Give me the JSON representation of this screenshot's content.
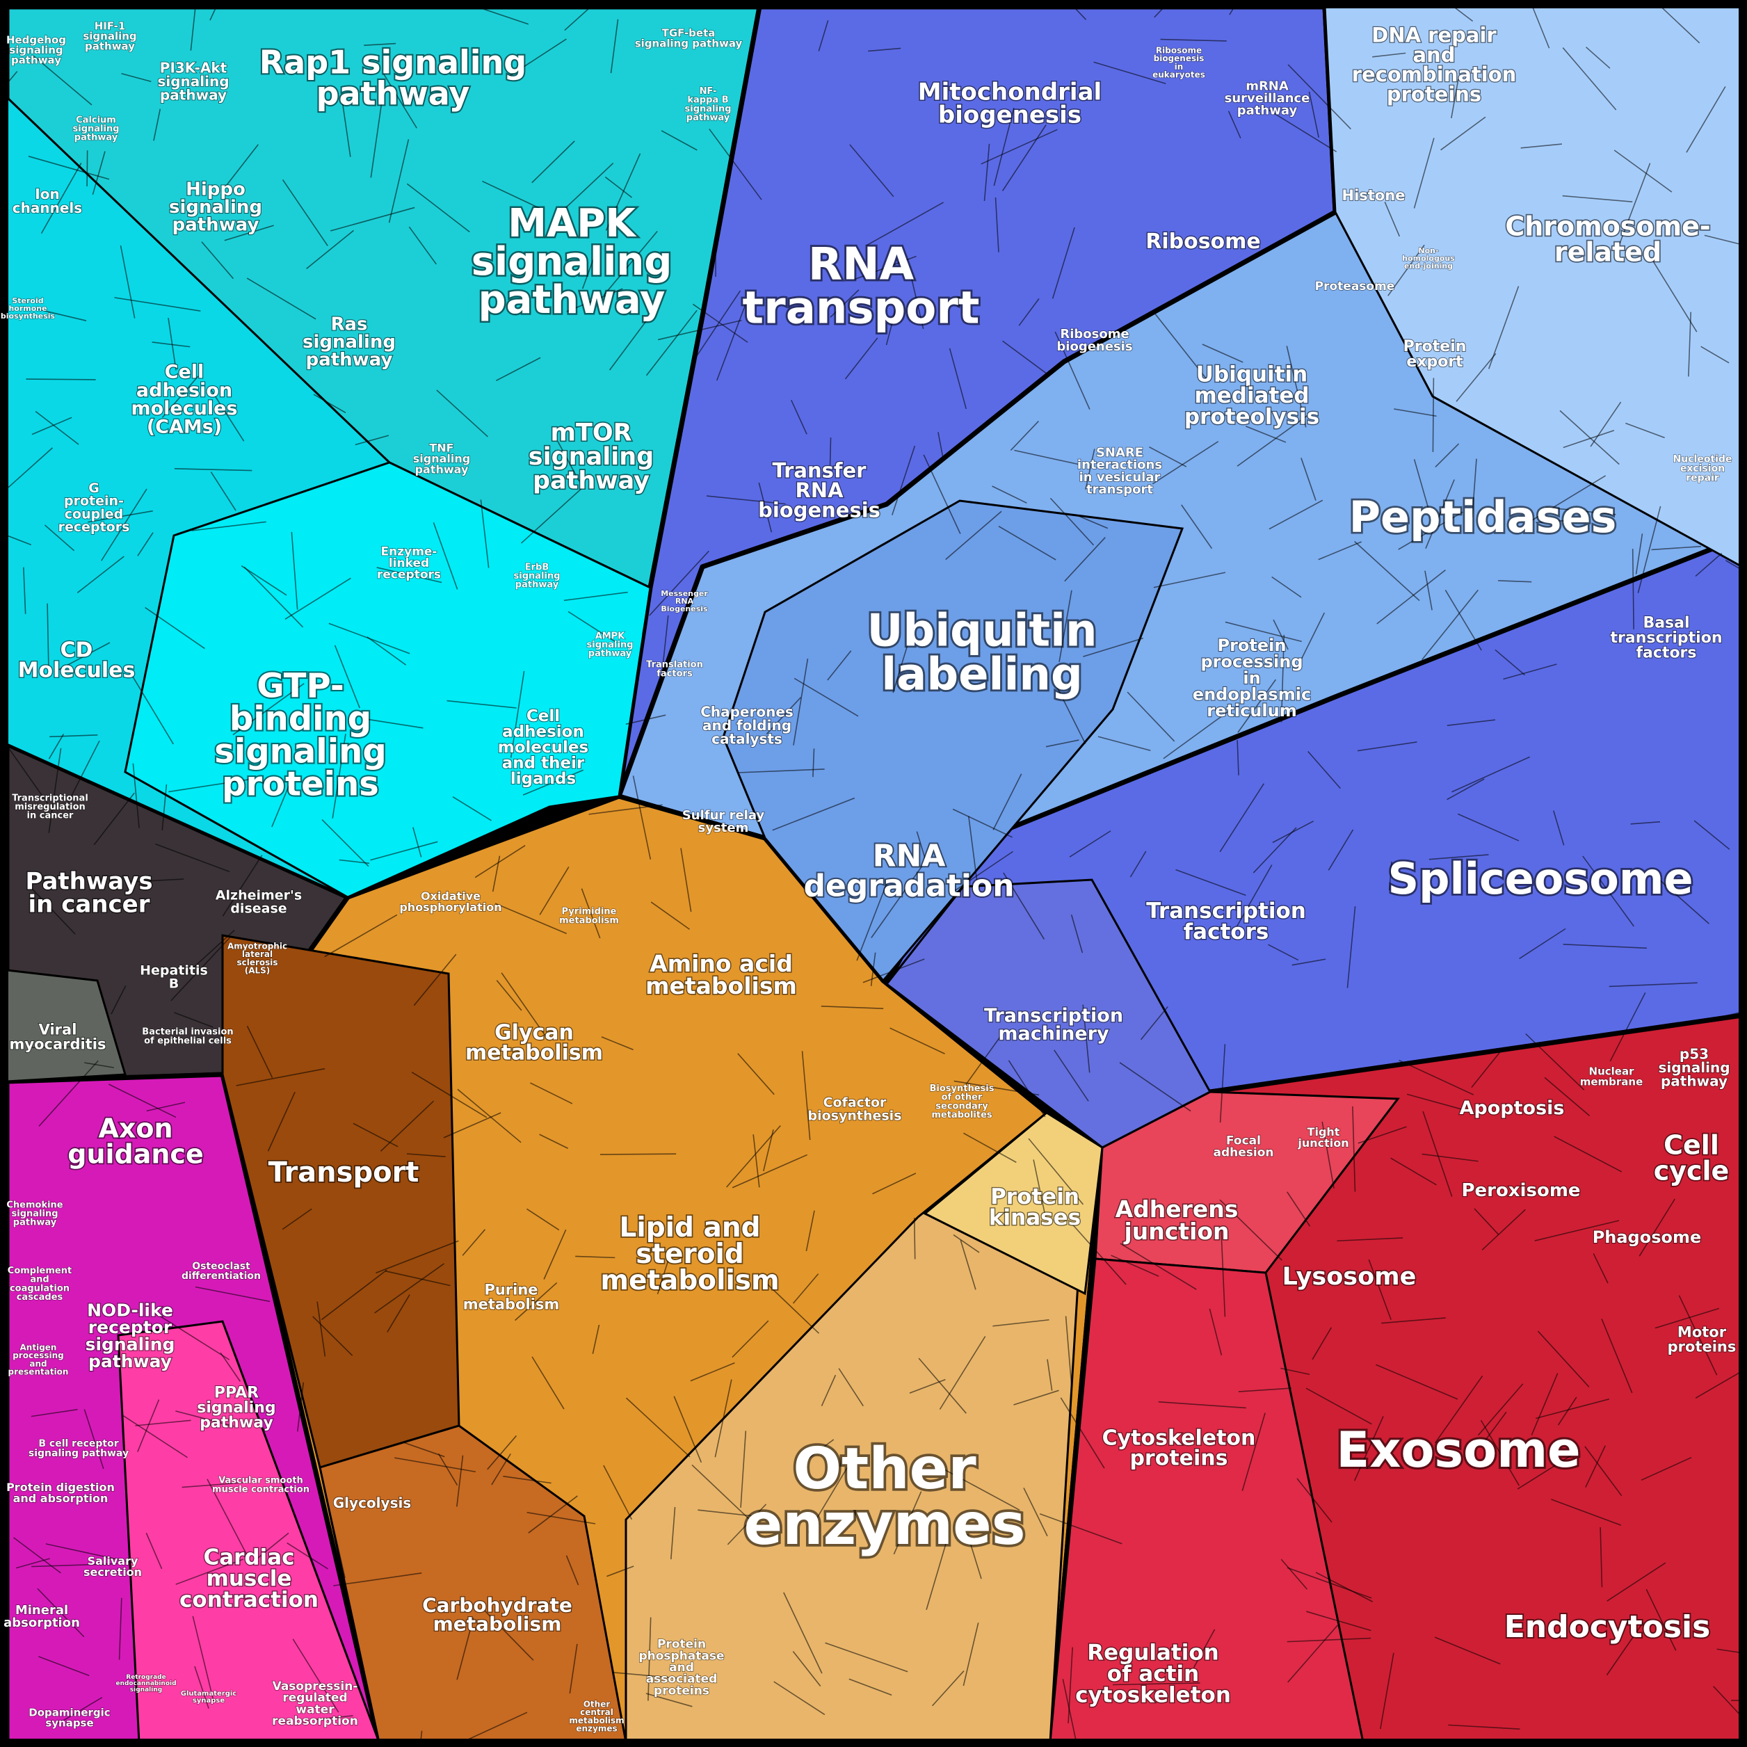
{
  "groups": [
    {
      "id": "signaling",
      "color": "#1ccfd6"
    },
    {
      "id": "gene-expression",
      "color": "#5b6be6"
    },
    {
      "id": "protein-fate",
      "color": "#7fb0f0"
    },
    {
      "id": "disease",
      "color": "#3a3236"
    },
    {
      "id": "metabolism",
      "color": "#e3962a"
    },
    {
      "id": "cellular-processes",
      "color": "#cf1f34"
    },
    {
      "id": "organismal",
      "color": "#d61ab8"
    }
  ],
  "labels": {
    "hedgehog": [
      "Hedgehog",
      "signaling",
      "pathway"
    ],
    "hif1": [
      "HIF-1",
      "signaling",
      "pathway"
    ],
    "pi3k": [
      "PI3K-Akt",
      "signaling",
      "pathway"
    ],
    "rap1": [
      "Rap1 signaling",
      "pathway"
    ],
    "tgfb": [
      "TGF-beta",
      "signaling pathway"
    ],
    "nfkb": [
      "NF-",
      "kappa B",
      "signaling",
      "pathway"
    ],
    "calcium": [
      "Calcium",
      "signaling",
      "pathway"
    ],
    "hippo": [
      "Hippo",
      "signaling",
      "pathway"
    ],
    "mapk": [
      "MAPK",
      "signaling",
      "pathway"
    ],
    "ion": [
      "Ion",
      "channels"
    ],
    "steroid": [
      "Steroid",
      "hormone",
      "biosynthesis"
    ],
    "cams": [
      "Cell",
      "adhesion",
      "molecules",
      "(CAMs)"
    ],
    "ras": [
      "Ras",
      "signaling",
      "pathway"
    ],
    "tnf": [
      "TNF",
      "signaling",
      "pathway"
    ],
    "mtor": [
      "mTOR",
      "signaling",
      "pathway"
    ],
    "gpcr": [
      "G",
      "protein-",
      "coupled",
      "receptors"
    ],
    "enzyme": [
      "Enzyme-",
      "linked",
      "receptors"
    ],
    "erbb": [
      "ErbB",
      "signaling",
      "pathway"
    ],
    "ampk": [
      "AMPK",
      "signaling",
      "pathway"
    ],
    "cd": [
      "CD",
      "Molecules"
    ],
    "gtp": [
      "GTP-",
      "binding",
      "signaling",
      "proteins"
    ],
    "celladh": [
      "Cell",
      "adhesion",
      "molecules",
      "and their",
      "ligands"
    ],
    "mito": [
      "Mitochondrial",
      "biogenesis"
    ],
    "ribbio": [
      "Ribosome",
      "biogenesis",
      "in",
      "eukaryotes"
    ],
    "mrna": [
      "mRNA",
      "surveillance",
      "pathway"
    ],
    "dnarep": [
      "DNA repair",
      "and",
      "recombination",
      "proteins"
    ],
    "histone": [
      "Histone"
    ],
    "ribosome": [
      "Ribosome"
    ],
    "nhej": [
      "Non-",
      "homologous",
      "end-joining"
    ],
    "chrom": [
      "Chromosome-",
      "related"
    ],
    "rnatrans": [
      "RNA",
      "transport"
    ],
    "proteasome": [
      "Proteasome"
    ],
    "ribobiog": [
      "Ribosome",
      "biogenesis"
    ],
    "protexp": [
      "Protein",
      "export"
    ],
    "ubimed": [
      "Ubiquitin",
      "mediated",
      "proteolysis"
    ],
    "snare": [
      "SNARE",
      "interactions",
      "in vesicular",
      "transport"
    ],
    "ner": [
      "Nucleotide",
      "excision",
      "repair"
    ],
    "trna": [
      "Transfer",
      "RNA",
      "biogenesis"
    ],
    "peptidases": [
      "Peptidases"
    ],
    "mrnabio": [
      "Messenger",
      "RNA",
      "Biogenesis"
    ],
    "ubilab": [
      "Ubiquitin",
      "labeling"
    ],
    "basal": [
      "Basal",
      "transcription",
      "factors"
    ],
    "transl": [
      "Translation",
      "factors"
    ],
    "protproc": [
      "Protein",
      "processing",
      "in",
      "endoplasmic",
      "reticulum"
    ],
    "chap": [
      "Chaperones",
      "and folding",
      "catalysts"
    ],
    "sulfur": [
      "Sulfur relay",
      "system"
    ],
    "rnadeg": [
      "RNA",
      "degradation"
    ],
    "splice": [
      "Spliceosome"
    ],
    "transmis": [
      "Transcriptional",
      "misregulation",
      "in cancer"
    ],
    "cancer": [
      "Pathways",
      "in cancer"
    ],
    "alz": [
      "Alzheimer's",
      "disease"
    ],
    "als": [
      "Amyotrophic",
      "lateral",
      "sclerosis",
      "(ALS)"
    ],
    "hepb": [
      "Hepatitis",
      "B"
    ],
    "viral": [
      "Viral",
      "myocarditis"
    ],
    "bact": [
      "Bacterial invasion",
      "of epithelial cells"
    ],
    "oxphos": [
      "Oxidative",
      "phosphorylation"
    ],
    "pyrim": [
      "Pyrimidine",
      "metabolism"
    ],
    "amino": [
      "Amino acid",
      "metabolism"
    ],
    "tf": [
      "Transcription",
      "factors"
    ],
    "glycan": [
      "Glycan",
      "metabolism"
    ],
    "transmach": [
      "Transcription",
      "machinery"
    ],
    "cofactor": [
      "Cofactor",
      "biosynthesis"
    ],
    "secmet": [
      "Biosynthesis",
      "of other",
      "secondary",
      "metabolites"
    ],
    "transport": [
      "Transport"
    ],
    "p53": [
      "p53",
      "signaling",
      "pathway"
    ],
    "apoptosis": [
      "Apoptosis"
    ],
    "nucmem": [
      "Nuclear",
      "membrane"
    ],
    "focal": [
      "Focal",
      "adhesion"
    ],
    "tight": [
      "Tight",
      "junction"
    ],
    "cellcycle": [
      "Cell",
      "cycle"
    ],
    "protkin": [
      "Protein",
      "kinases"
    ],
    "adherens": [
      "Adherens",
      "junction"
    ],
    "peroxisome": [
      "Peroxisome"
    ],
    "lipid": [
      "Lipid and",
      "steroid",
      "metabolism"
    ],
    "phagosome": [
      "Phagosome"
    ],
    "lysosome": [
      "Lysosome"
    ],
    "purine": [
      "Purine",
      "metabolism"
    ],
    "motor": [
      "Motor",
      "proteins"
    ],
    "axon": [
      "Axon",
      "guidance"
    ],
    "chemokine": [
      "Chemokine",
      "signaling",
      "pathway"
    ],
    "osteo": [
      "Osteoclast",
      "differentiation"
    ],
    "complement": [
      "Complement",
      "and",
      "coagulation",
      "cascades"
    ],
    "nod": [
      "NOD-like",
      "receptor",
      "signaling",
      "pathway"
    ],
    "antigen": [
      "Antigen",
      "processing",
      "and",
      "presentation"
    ],
    "ppar": [
      "PPAR",
      "signaling",
      "pathway"
    ],
    "bcell": [
      "B cell receptor",
      "signaling pathway"
    ],
    "vsm": [
      "Vascular smooth",
      "muscle contraction"
    ],
    "protdig": [
      "Protein digestion",
      "and absorption"
    ],
    "cardiac": [
      "Cardiac",
      "muscle",
      "contraction"
    ],
    "salivary": [
      "Salivary",
      "secretion"
    ],
    "mineral": [
      "Mineral",
      "absorption"
    ],
    "retro": [
      "Retrograde",
      "endocannabinoid",
      "signaling"
    ],
    "glutam": [
      "Glutamatergic",
      "synapse"
    ],
    "dopa": [
      "Dopaminergic",
      "synapse"
    ],
    "vaso": [
      "Vasopressin-",
      "regulated",
      "water",
      "reabsorption"
    ],
    "glycolysis": [
      "Glycolysis"
    ],
    "cytosk": [
      "Cytoskeleton",
      "proteins"
    ],
    "exosome": [
      "Exosome"
    ],
    "otherenz": [
      "Other",
      "enzymes"
    ],
    "carbo": [
      "Carbohydrate",
      "metabolism"
    ],
    "ppase": [
      "Protein",
      "phosphatase",
      "and",
      "associated",
      "proteins"
    ],
    "othercentral": [
      "Other",
      "central",
      "metabolism",
      "enzymes"
    ],
    "regactin": [
      "Regulation",
      "of actin",
      "cytoskeleton"
    ],
    "endo": [
      "Endocytosis"
    ]
  }
}
